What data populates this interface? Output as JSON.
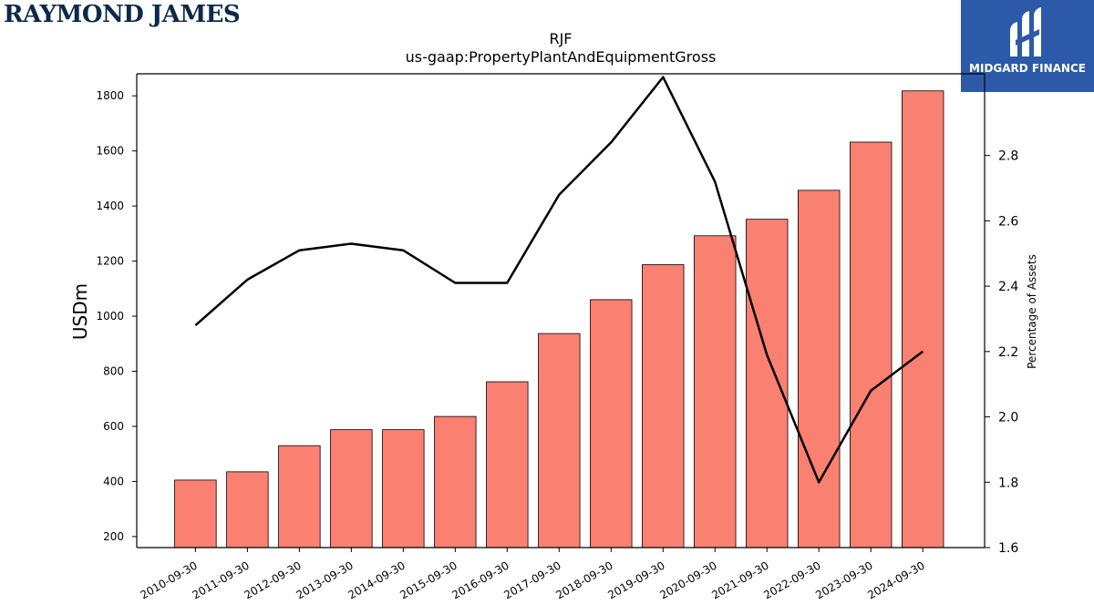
{
  "branding": {
    "left_logo_text": "RAYMOND JAMES",
    "right_logo_text": "MIDGARD FINANCE",
    "right_logo_bg": "#2c5aa8",
    "left_logo_color": "#0b2a4a"
  },
  "chart_data": {
    "type": "bar",
    "title": "RJF",
    "subtitle": "us-gaap:PropertyPlantAndEquipmentGross",
    "ylabel": "USDm",
    "y2label": "Percentage of Assets",
    "ylim": [
      160,
      1880
    ],
    "y2lim": [
      1.6,
      3.05
    ],
    "yticks": [
      200,
      400,
      600,
      800,
      1000,
      1200,
      1400,
      1600,
      1800
    ],
    "y2ticks": [
      1.6,
      1.8,
      2.0,
      2.2,
      2.4,
      2.6,
      2.8
    ],
    "y2tick_labels": [
      "1.6",
      "1.8",
      "2.0",
      "2.2",
      "2.4",
      "2.6",
      "2.8"
    ],
    "categories": [
      "2010-09-30",
      "2011-09-30",
      "2012-09-30",
      "2013-09-30",
      "2014-09-30",
      "2015-09-30",
      "2016-09-30",
      "2017-09-30",
      "2018-09-30",
      "2019-09-30",
      "2020-09-30",
      "2021-09-30",
      "2022-09-30",
      "2023-09-30",
      "2024-09-30"
    ],
    "series": [
      {
        "values": [
          405,
          435,
          530,
          588,
          588,
          636,
          762,
          937,
          1060,
          1187,
          1292,
          1352,
          1457,
          1632,
          1818
        ],
        "type": "bar",
        "axis": "left",
        "color": "#fa8072"
      },
      {
        "values": [
          2.28,
          2.42,
          2.51,
          2.53,
          2.51,
          2.41,
          2.41,
          2.68,
          2.84,
          3.04,
          2.72,
          2.19,
          1.8,
          2.08,
          2.2
        ],
        "type": "line",
        "axis": "right",
        "color": "#000000"
      }
    ],
    "grid": false
  }
}
